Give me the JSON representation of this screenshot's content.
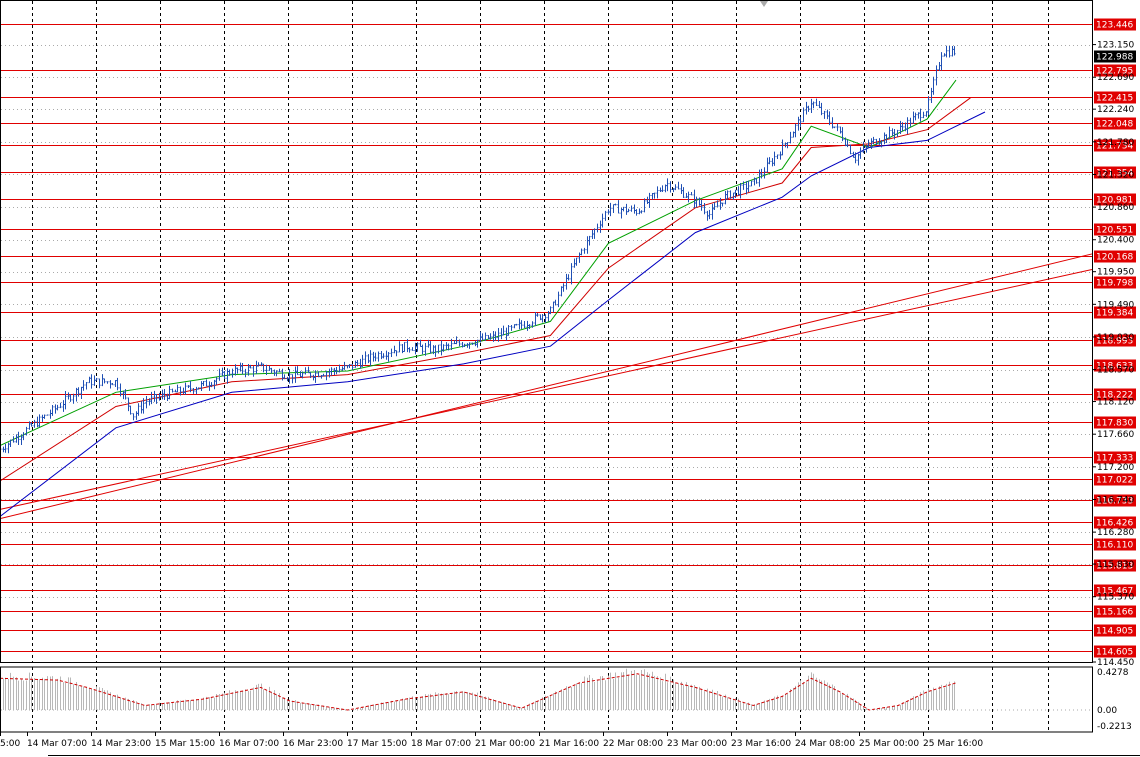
{
  "chart_data": {
    "type": "candlestick",
    "instrument_scale": {
      "price_range": [
        114.45,
        123.75
      ],
      "indicator_range": [
        -0.2213,
        0.4278
      ],
      "grid": true
    },
    "price_tick_labels": [
      "123.150",
      "122.690",
      "122.240",
      "121.780",
      "121.320",
      "120.860",
      "120.400",
      "119.950",
      "119.490",
      "119.030",
      "118.570",
      "118.120",
      "117.660",
      "117.200",
      "116.740",
      "116.280",
      "115.830",
      "115.370",
      "114.450"
    ],
    "indicator_tick_labels": [
      "0.4278",
      "0.00",
      "-0.2213"
    ],
    "time_labels": [
      "5:00",
      "14 Mar 07:00",
      "14 Mar 23:00",
      "15 Mar 15:00",
      "16 Mar 07:00",
      "16 Mar 23:00",
      "17 Mar 15:00",
      "18 Mar 07:00",
      "21 Mar 00:00",
      "21 Mar 16:00",
      "22 Mar 08:00",
      "23 Mar 00:00",
      "23 Mar 16:00",
      "24 Mar 08:00",
      "25 Mar 00:00",
      "25 Mar 16:00"
    ],
    "current_price": "122.988",
    "horizontal_levels": [
      "123.446",
      "122.795",
      "122.415",
      "122.048",
      "121.734",
      "121.354",
      "120.981",
      "120.551",
      "120.168",
      "119.798",
      "119.384",
      "118.993",
      "118.633",
      "118.222",
      "117.830",
      "117.333",
      "117.022",
      "116.733",
      "116.426",
      "116.110",
      "115.813",
      "115.467",
      "115.166",
      "114.905",
      "114.605"
    ],
    "trend_lines": [
      {
        "from": [
          0,
          116.47
        ],
        "to": [
          1,
          120.2
        ]
      },
      {
        "from": [
          0,
          116.6
        ],
        "to": [
          1,
          119.98
        ]
      }
    ],
    "price_path": [
      [
        0,
        117.45
      ],
      [
        2,
        118.05
      ],
      [
        3,
        118.4
      ],
      [
        4,
        118.4
      ],
      [
        4.6,
        117.92
      ],
      [
        5,
        118.12
      ],
      [
        6,
        118.25
      ],
      [
        7,
        118.35
      ],
      [
        8,
        118.55
      ],
      [
        9,
        118.6
      ],
      [
        10,
        118.48
      ],
      [
        11,
        118.52
      ],
      [
        12,
        118.6
      ],
      [
        13,
        118.78
      ],
      [
        14,
        118.9
      ],
      [
        15,
        118.85
      ],
      [
        16,
        118.95
      ],
      [
        17,
        119.02
      ],
      [
        18,
        119.2
      ],
      [
        19,
        119.4
      ],
      [
        20,
        120.2
      ],
      [
        21,
        120.85
      ],
      [
        22,
        120.8
      ],
      [
        23,
        121.2
      ],
      [
        24,
        120.95
      ],
      [
        24.5,
        120.75
      ],
      [
        25,
        121.0
      ],
      [
        26,
        121.2
      ],
      [
        27,
        121.7
      ],
      [
        28,
        122.35
      ],
      [
        29,
        121.9
      ],
      [
        29.5,
        121.55
      ],
      [
        30,
        121.75
      ],
      [
        31,
        121.95
      ],
      [
        32,
        122.25
      ],
      [
        32.5,
        123.05
      ],
      [
        33,
        123.05
      ]
    ],
    "moving_averages": [
      {
        "color": "#00a000",
        "path": [
          [
            0,
            117.5
          ],
          [
            4,
            118.25
          ],
          [
            8,
            118.5
          ],
          [
            12,
            118.55
          ],
          [
            16,
            118.9
          ],
          [
            19,
            119.25
          ],
          [
            21,
            120.35
          ],
          [
            24,
            120.95
          ],
          [
            27,
            121.4
          ],
          [
            28,
            122.0
          ],
          [
            30,
            121.7
          ],
          [
            32,
            122.1
          ],
          [
            33,
            122.65
          ]
        ]
      },
      {
        "color": "#d00000",
        "path": [
          [
            0,
            117.0
          ],
          [
            4,
            118.05
          ],
          [
            8,
            118.4
          ],
          [
            12,
            118.5
          ],
          [
            16,
            118.8
          ],
          [
            19,
            119.05
          ],
          [
            21,
            120.0
          ],
          [
            24,
            120.85
          ],
          [
            27,
            121.2
          ],
          [
            28,
            121.7
          ],
          [
            30,
            121.75
          ],
          [
            32,
            121.95
          ],
          [
            33.5,
            122.4
          ]
        ]
      },
      {
        "color": "#0000c0",
        "path": [
          [
            0,
            116.5
          ],
          [
            4,
            117.75
          ],
          [
            8,
            118.25
          ],
          [
            12,
            118.4
          ],
          [
            16,
            118.65
          ],
          [
            19,
            118.9
          ],
          [
            21,
            119.55
          ],
          [
            24,
            120.5
          ],
          [
            27,
            121.0
          ],
          [
            28,
            121.3
          ],
          [
            30,
            121.7
          ],
          [
            32,
            121.8
          ],
          [
            34,
            122.2
          ]
        ]
      }
    ],
    "oscillator": {
      "color": "#d00000",
      "values": [
        [
          0,
          0.35
        ],
        [
          2,
          0.33
        ],
        [
          3,
          0.25
        ],
        [
          5,
          0.05
        ],
        [
          7,
          0.12
        ],
        [
          9,
          0.25
        ],
        [
          10,
          0.1
        ],
        [
          12,
          0.0
        ],
        [
          14,
          0.12
        ],
        [
          16,
          0.2
        ],
        [
          18,
          0.02
        ],
        [
          20,
          0.3
        ],
        [
          22,
          0.4
        ],
        [
          24,
          0.25
        ],
        [
          26,
          0.05
        ],
        [
          27,
          0.15
        ],
        [
          28,
          0.35
        ],
        [
          29,
          0.2
        ],
        [
          30,
          0.0
        ],
        [
          31,
          0.05
        ],
        [
          32,
          0.2
        ],
        [
          33,
          0.3
        ]
      ]
    }
  }
}
